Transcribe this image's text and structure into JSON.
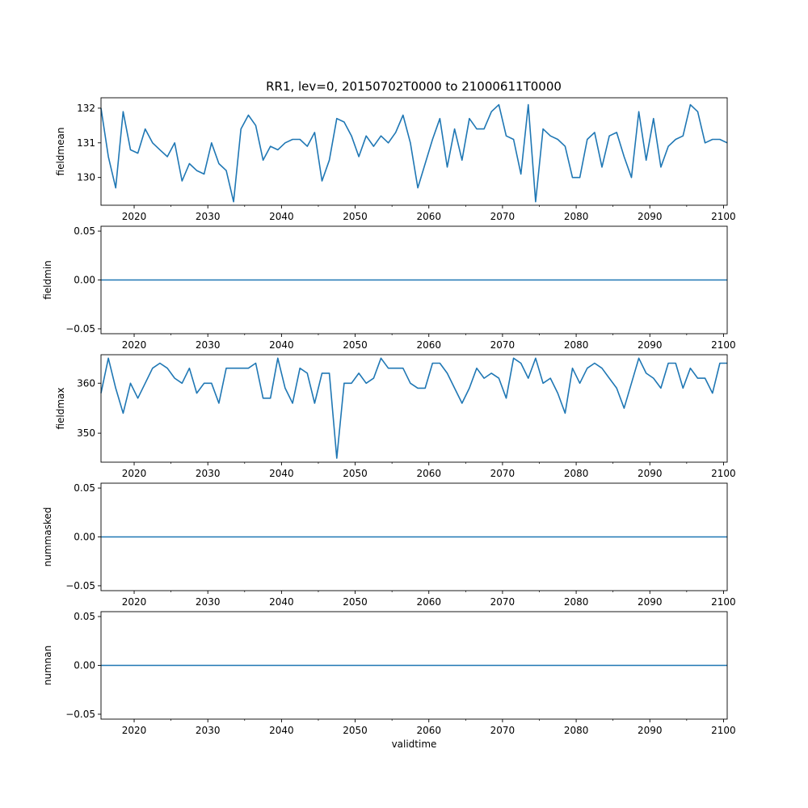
{
  "title": "RR1, lev=0, 20150702T0000 to 21000611T0000",
  "colors": {
    "line": "#1f77b4",
    "axis": "#000000",
    "background": "#ffffff"
  },
  "chart_data": [
    {
      "type": "line",
      "name": "fieldmean",
      "ylabel": "fieldmean",
      "xlabel": "",
      "xlim": [
        2015.5,
        2100.5
      ],
      "ylim": [
        129.2,
        132.3
      ],
      "x_ticks": [
        2020,
        2030,
        2040,
        2050,
        2060,
        2070,
        2080,
        2090,
        2100
      ],
      "x_tick_labels": [
        "2020",
        "2030",
        "2040",
        "2050",
        "2060",
        "2070",
        "2080",
        "2090",
        "2100"
      ],
      "y_ticks": [
        130,
        131,
        132
      ],
      "y_tick_labels": [
        "130",
        "131",
        "132"
      ],
      "x": [
        2015.5,
        2016.5,
        2017.5,
        2018.5,
        2019.5,
        2020.5,
        2021.5,
        2022.5,
        2023.5,
        2024.5,
        2025.5,
        2026.5,
        2027.5,
        2028.5,
        2029.5,
        2030.5,
        2031.5,
        2032.5,
        2033.5,
        2034.5,
        2035.5,
        2036.5,
        2037.5,
        2038.5,
        2039.5,
        2040.5,
        2041.5,
        2042.5,
        2043.5,
        2044.5,
        2045.5,
        2046.5,
        2047.5,
        2048.5,
        2049.5,
        2050.5,
        2051.5,
        2052.5,
        2053.5,
        2054.5,
        2055.5,
        2056.5,
        2057.5,
        2058.5,
        2059.5,
        2060.5,
        2061.5,
        2062.5,
        2063.5,
        2064.5,
        2065.5,
        2066.5,
        2067.5,
        2068.5,
        2069.5,
        2070.5,
        2071.5,
        2072.5,
        2073.5,
        2074.5,
        2075.5,
        2076.5,
        2077.5,
        2078.5,
        2079.5,
        2080.5,
        2081.5,
        2082.5,
        2083.5,
        2084.5,
        2085.5,
        2086.5,
        2087.5,
        2088.5,
        2089.5,
        2090.5,
        2091.5,
        2092.5,
        2093.5,
        2094.5,
        2095.5,
        2096.5,
        2097.5,
        2098.5,
        2099.5,
        2100.5
      ],
      "values": [
        132.0,
        130.6,
        129.7,
        131.9,
        130.8,
        130.7,
        131.4,
        131.0,
        130.8,
        130.6,
        131.0,
        129.9,
        130.4,
        130.2,
        130.1,
        131.0,
        130.4,
        130.2,
        129.3,
        131.4,
        131.8,
        131.5,
        130.5,
        130.9,
        130.8,
        131.0,
        131.1,
        131.1,
        130.9,
        131.3,
        129.9,
        130.5,
        131.7,
        131.6,
        131.2,
        130.6,
        131.2,
        130.9,
        131.2,
        131.0,
        131.3,
        131.8,
        131.0,
        129.7,
        130.4,
        131.1,
        131.7,
        130.3,
        131.4,
        130.5,
        131.7,
        131.4,
        131.4,
        131.9,
        132.1,
        131.2,
        131.1,
        130.1,
        132.1,
        129.3,
        131.4,
        131.2,
        131.1,
        130.9,
        130.0,
        130.0,
        131.1,
        131.3,
        130.3,
        131.2,
        131.3,
        130.6,
        130.0,
        131.9,
        130.5,
        131.7,
        130.3,
        130.9,
        131.1,
        131.2,
        132.1,
        131.9,
        131.0,
        131.1,
        131.1,
        131.0
      ]
    },
    {
      "type": "line",
      "name": "fieldmin",
      "ylabel": "fieldmin",
      "xlabel": "",
      "xlim": [
        2015.5,
        2100.5
      ],
      "ylim": [
        -0.055,
        0.055
      ],
      "x_ticks": [
        2020,
        2030,
        2040,
        2050,
        2060,
        2070,
        2080,
        2090,
        2100
      ],
      "x_tick_labels": [
        "2020",
        "2030",
        "2040",
        "2050",
        "2060",
        "2070",
        "2080",
        "2090",
        "2100"
      ],
      "y_ticks": [
        -0.05,
        0.0,
        0.05
      ],
      "y_tick_labels": [
        "−0.05",
        "0.00",
        "0.05"
      ],
      "x": [
        2015.5,
        2100.5
      ],
      "values": [
        0.0,
        0.0
      ]
    },
    {
      "type": "line",
      "name": "fieldmax",
      "ylabel": "fieldmax",
      "xlabel": "",
      "xlim": [
        2015.5,
        2100.5
      ],
      "ylim": [
        344.2,
        365.7
      ],
      "x_ticks": [
        2020,
        2030,
        2040,
        2050,
        2060,
        2070,
        2080,
        2090,
        2100
      ],
      "x_tick_labels": [
        "2020",
        "2030",
        "2040",
        "2050",
        "2060",
        "2070",
        "2080",
        "2090",
        "2100"
      ],
      "y_ticks": [
        350,
        360
      ],
      "y_tick_labels": [
        "350",
        "360"
      ],
      "x": [
        2015.5,
        2016.5,
        2017.5,
        2018.5,
        2019.5,
        2020.5,
        2021.5,
        2022.5,
        2023.5,
        2024.5,
        2025.5,
        2026.5,
        2027.5,
        2028.5,
        2029.5,
        2030.5,
        2031.5,
        2032.5,
        2033.5,
        2034.5,
        2035.5,
        2036.5,
        2037.5,
        2038.5,
        2039.5,
        2040.5,
        2041.5,
        2042.5,
        2043.5,
        2044.5,
        2045.5,
        2046.5,
        2047.5,
        2048.5,
        2049.5,
        2050.5,
        2051.5,
        2052.5,
        2053.5,
        2054.5,
        2055.5,
        2056.5,
        2057.5,
        2058.5,
        2059.5,
        2060.5,
        2061.5,
        2062.5,
        2063.5,
        2064.5,
        2065.5,
        2066.5,
        2067.5,
        2068.5,
        2069.5,
        2070.5,
        2071.5,
        2072.5,
        2073.5,
        2074.5,
        2075.5,
        2076.5,
        2077.5,
        2078.5,
        2079.5,
        2080.5,
        2081.5,
        2082.5,
        2083.5,
        2084.5,
        2085.5,
        2086.5,
        2087.5,
        2088.5,
        2089.5,
        2090.5,
        2091.5,
        2092.5,
        2093.5,
        2094.5,
        2095.5,
        2096.5,
        2097.5,
        2098.5,
        2099.5,
        2100.5
      ],
      "values": [
        358,
        365,
        359,
        354,
        360,
        357,
        360,
        363,
        364,
        363,
        361,
        360,
        363,
        358,
        360,
        360,
        356,
        363,
        363,
        363,
        363,
        364,
        357,
        357,
        365,
        359,
        356,
        363,
        362,
        356,
        362,
        362,
        345,
        360,
        360,
        362,
        360,
        361,
        365,
        363,
        363,
        363,
        360,
        359,
        359,
        364,
        364,
        362,
        359,
        356,
        359,
        363,
        361,
        362,
        361,
        357,
        365,
        364,
        361,
        365,
        360,
        361,
        358,
        354,
        363,
        360,
        363,
        364,
        363,
        361,
        359,
        355,
        360,
        365,
        362,
        361,
        359,
        364,
        364,
        359,
        363,
        361,
        361,
        358,
        364,
        364
      ]
    },
    {
      "type": "line",
      "name": "nummasked",
      "ylabel": "nummasked",
      "xlabel": "",
      "xlim": [
        2015.5,
        2100.5
      ],
      "ylim": [
        -0.055,
        0.055
      ],
      "x_ticks": [
        2020,
        2030,
        2040,
        2050,
        2060,
        2070,
        2080,
        2090,
        2100
      ],
      "x_tick_labels": [
        "2020",
        "2030",
        "2040",
        "2050",
        "2060",
        "2070",
        "2080",
        "2090",
        "2100"
      ],
      "y_ticks": [
        -0.05,
        0.0,
        0.05
      ],
      "y_tick_labels": [
        "−0.05",
        "0.00",
        "0.05"
      ],
      "x": [
        2015.5,
        2100.5
      ],
      "values": [
        0.0,
        0.0
      ]
    },
    {
      "type": "line",
      "name": "numnan",
      "ylabel": "numnan",
      "xlabel": "validtime",
      "xlim": [
        2015.5,
        2100.5
      ],
      "ylim": [
        -0.055,
        0.055
      ],
      "x_ticks": [
        2020,
        2030,
        2040,
        2050,
        2060,
        2070,
        2080,
        2090,
        2100
      ],
      "x_tick_labels": [
        "2020",
        "2030",
        "2040",
        "2050",
        "2060",
        "2070",
        "2080",
        "2090",
        "2100"
      ],
      "y_ticks": [
        -0.05,
        0.0,
        0.05
      ],
      "y_tick_labels": [
        "−0.05",
        "0.00",
        "0.05"
      ],
      "x": [
        2015.5,
        2100.5
      ],
      "values": [
        0.0,
        0.0
      ]
    }
  ]
}
